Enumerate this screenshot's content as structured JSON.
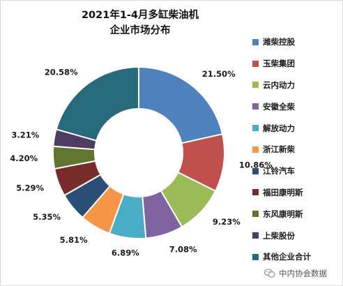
{
  "chart_data": {
    "type": "pie",
    "title": "2021年1-4月多缸柴油机\n企业市场分布",
    "categories": [
      "潍柴控股",
      "玉柴集团",
      "云内动力",
      "安徽全柴",
      "解放动力",
      "浙江新柴",
      "江铃汽车",
      "福田康明斯",
      "东风康明斯",
      "上柴股份",
      "其他企业合计"
    ],
    "values": [
      21.5,
      10.86,
      9.23,
      7.08,
      6.89,
      5.81,
      5.35,
      5.29,
      4.2,
      3.21,
      20.58
    ],
    "value_labels": [
      "21.50%",
      "10.86%",
      "9.23%",
      "7.08%",
      "6.89%",
      "5.81%",
      "5.35%",
      "5.29%",
      "4.20%",
      "3.21%",
      "20.58%"
    ],
    "colors": [
      "#4F81BD",
      "#C0504D",
      "#9BBB59",
      "#8064A2",
      "#4BACC6",
      "#F79646",
      "#2C4D75",
      "#772C2A",
      "#5F7530",
      "#4D3B62",
      "#276A7C"
    ],
    "legend_position": "right",
    "donut": true
  },
  "watermark": {
    "icon": "wechat-icon",
    "text": "中内协会数据"
  }
}
